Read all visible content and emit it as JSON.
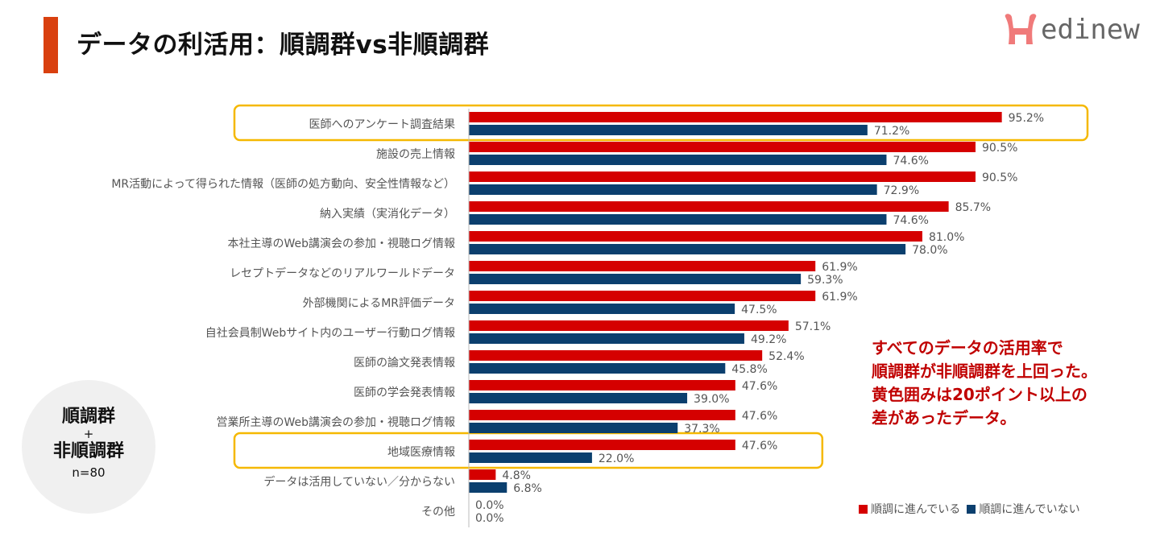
{
  "title": "データの利活用：順調群vs非順調群",
  "logo_text": "Medinew",
  "circle": {
    "group1": "順調群",
    "plus": "+",
    "group2": "非順調群",
    "n": "n=80"
  },
  "note": [
    "すべてのデータの活用率で",
    "順調群が非順調群を上回った。",
    "黄色囲みは20ポイント以上の",
    "差があったデータ。"
  ],
  "colors": {
    "series1": "#d50000",
    "series2": "#0b3f6e",
    "highlight": "#f5b800"
  },
  "chart_data": {
    "type": "bar",
    "orientation": "horizontal",
    "categories": [
      "医師へのアンケート調査結果",
      "施設の売上情報",
      "MR活動によって得られた情報（医師の処方動向、安全性情報など）",
      "納入実績（実消化データ）",
      "本社主導のWeb講演会の参加・視聴ログ情報",
      "レセプトデータなどのリアルワールドデータ",
      "外部機関によるMR評価データ",
      "自社会員制Webサイト内のユーザー行動ログ情報",
      "医師の論文発表情報",
      "医師の学会発表情報",
      "営業所主導のWeb講演会の参加・視聴ログ情報",
      "地域医療情報",
      "データは活用していない／分からない",
      "その他"
    ],
    "series": [
      {
        "name": "順調に進んでいる",
        "values": [
          95.2,
          90.5,
          90.5,
          85.7,
          81.0,
          61.9,
          61.9,
          57.1,
          52.4,
          47.6,
          47.6,
          47.6,
          4.8,
          0.0
        ]
      },
      {
        "name": "順調に進んでいない",
        "values": [
          71.2,
          74.6,
          72.9,
          74.6,
          78.0,
          59.3,
          47.5,
          49.2,
          45.8,
          39.0,
          37.3,
          22.0,
          6.8,
          0.0
        ]
      }
    ],
    "highlighted_categories": [
      "医師へのアンケート調査結果",
      "地域医療情報"
    ],
    "value_suffix": "%",
    "xlim": [
      0,
      100
    ],
    "legend_position": "bottom-right",
    "grid": false
  }
}
